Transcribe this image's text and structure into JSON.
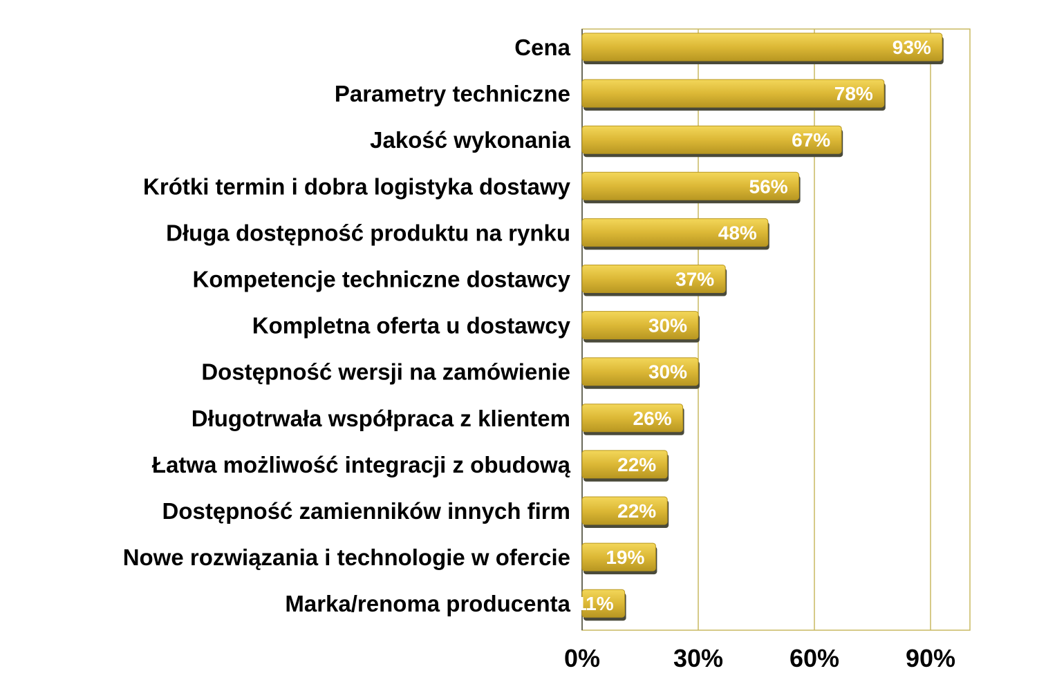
{
  "chart_data": {
    "type": "bar",
    "orientation": "horizontal",
    "categories": [
      "Cena",
      "Parametry techniczne",
      "Jakość wykonania",
      "Krótki termin i dobra logistyka dostawy",
      "Długa dostępność produktu na rynku",
      "Kompetencje techniczne dostawcy",
      "Kompletna oferta u dostawcy",
      "Dostępność wersji na zamówienie",
      "Długotrwała współpraca z klientem",
      "Łatwa możliwość integracji z obudową",
      "Dostępność zamienników innych firm",
      "Nowe rozwiązania i technologie w ofercie",
      "Marka/renoma producenta"
    ],
    "values": [
      93,
      78,
      67,
      56,
      48,
      37,
      30,
      30,
      26,
      22,
      22,
      19,
      11
    ],
    "value_labels": [
      "93%",
      "78%",
      "67%",
      "56%",
      "48%",
      "37%",
      "30%",
      "30%",
      "26%",
      "22%",
      "22%",
      "19%",
      "11%"
    ],
    "xlim": [
      0,
      100
    ],
    "xticks": [
      0,
      30,
      60,
      90
    ],
    "xtick_labels": [
      "0%",
      "30%",
      "60%",
      "90%"
    ],
    "grid": true,
    "colors": {
      "bar_light": "#f0cf4a",
      "bar_mid": "#d8b22f",
      "bar_dark": "#a88a1a",
      "shadow": "#4a4a3a",
      "grid": "#c8b860",
      "frame": "#c8b860"
    }
  }
}
